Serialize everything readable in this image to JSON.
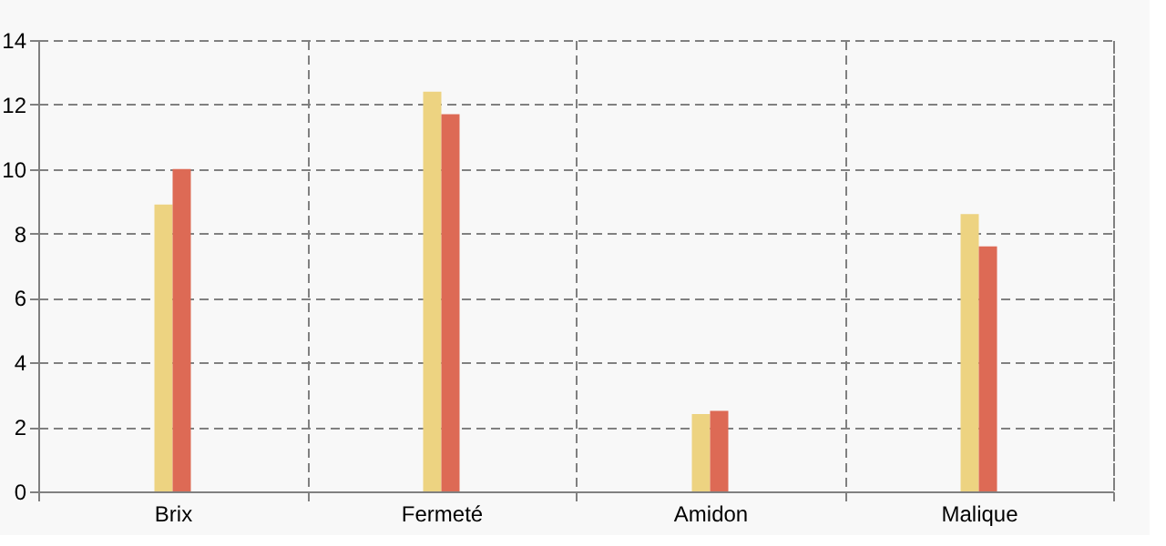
{
  "chart_data": {
    "type": "bar",
    "categories": [
      "Brix",
      "Fermeté",
      "Amidon",
      "Malique"
    ],
    "series": [
      {
        "color": "#edd381",
        "values": [
          8.9,
          12.4,
          2.4,
          8.6
        ]
      },
      {
        "color": "#dd6a55",
        "values": [
          10.0,
          11.7,
          2.5,
          7.6
        ]
      }
    ],
    "ylim": [
      0,
      14
    ],
    "yticks": [
      0,
      2,
      4,
      6,
      8,
      10,
      12,
      14
    ],
    "grid": true,
    "legend": false
  }
}
